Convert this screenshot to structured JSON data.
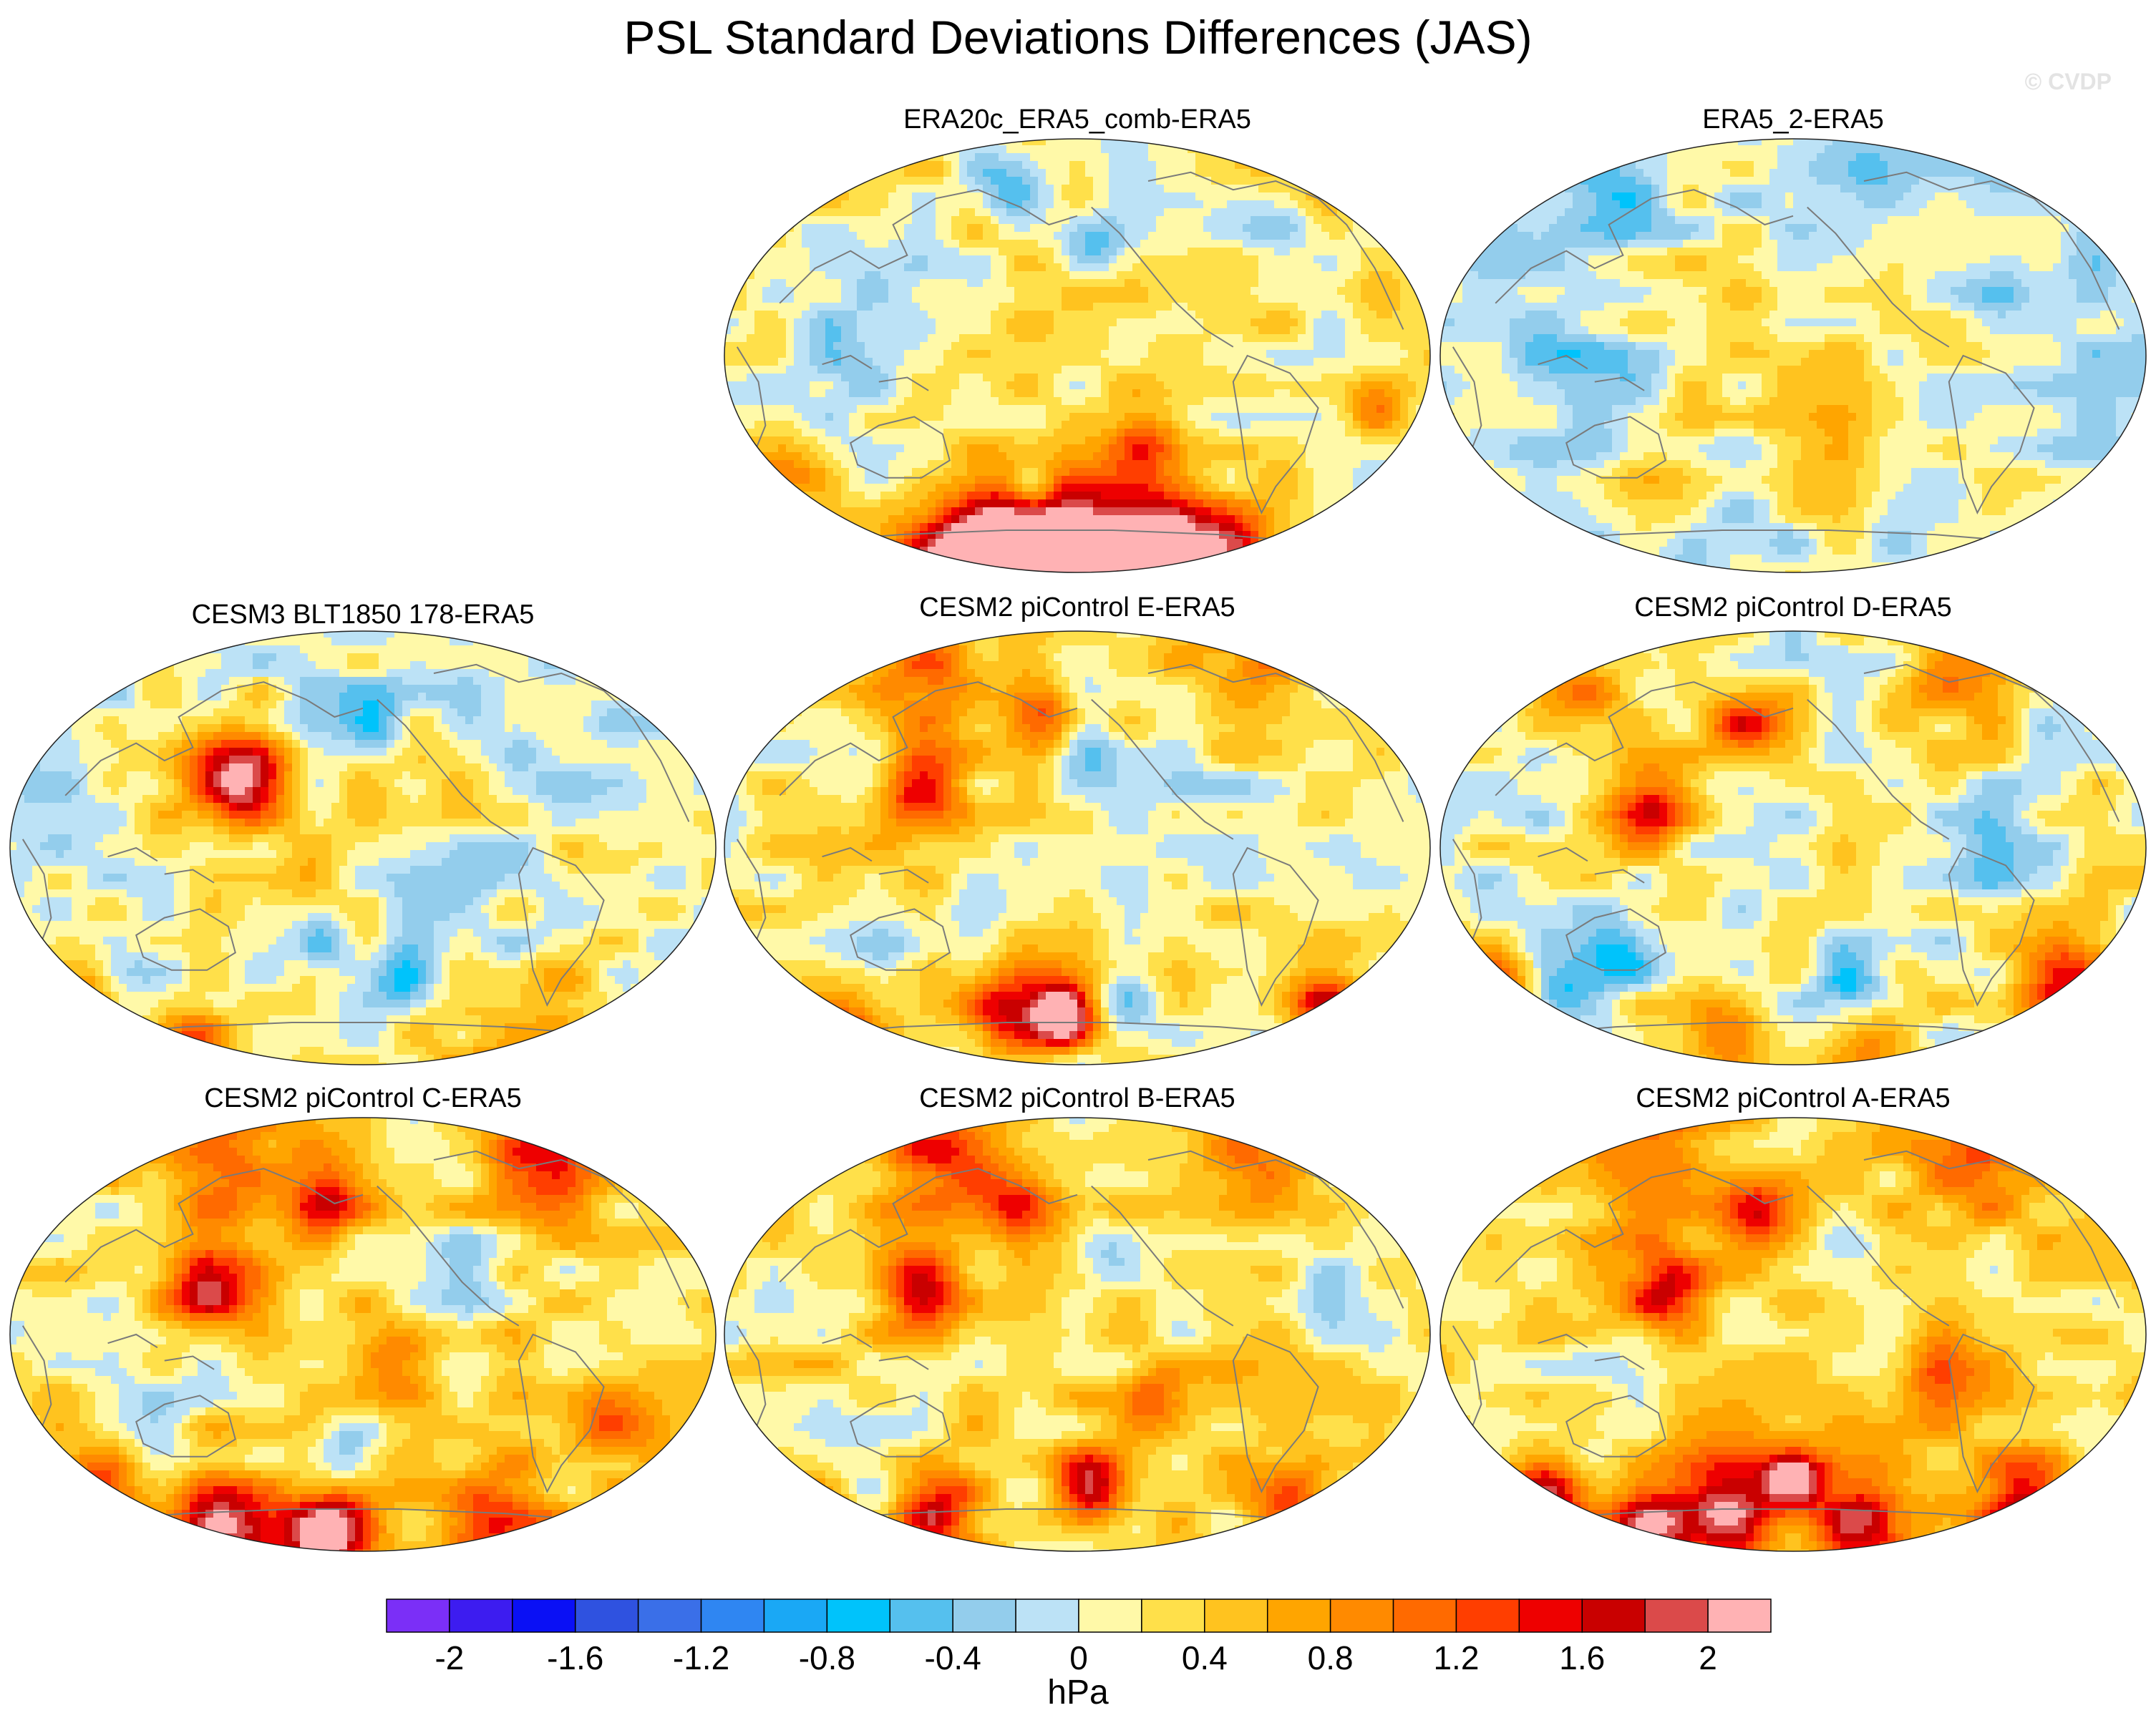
{
  "title": "PSL Standard Deviations Differences (JAS)",
  "watermark": "© CVDP",
  "panels": [
    {
      "label": "ERA20c_ERA5_comb-ERA5",
      "pattern": "reanalysis-a"
    },
    {
      "label": "ERA5_2-ERA5",
      "pattern": "reanalysis-b"
    },
    {
      "label": "CESM3 BLT1850 178-ERA5",
      "pattern": "model-a"
    },
    {
      "label": "CESM2 piControl E-ERA5",
      "pattern": "model-b"
    },
    {
      "label": "CESM2 piControl D-ERA5",
      "pattern": "model-c"
    },
    {
      "label": "CESM2 piControl C-ERA5",
      "pattern": "model-d"
    },
    {
      "label": "CESM2 piControl B-ERA5",
      "pattern": "model-e"
    },
    {
      "label": "CESM2 piControl A-ERA5",
      "pattern": "model-f"
    }
  ],
  "colorbar": {
    "unit": "hPa",
    "tick_labels": [
      "-2",
      "-1.6",
      "-1.2",
      "-0.8",
      "-0.4",
      "0",
      "0.4",
      "0.8",
      "1.2",
      "1.6",
      "2"
    ],
    "levels": [
      -2.2,
      -2.0,
      -1.8,
      -1.6,
      -1.4,
      -1.2,
      -1.0,
      -0.8,
      -0.6,
      -0.4,
      -0.2,
      0,
      0.2,
      0.4,
      0.6,
      0.8,
      1.0,
      1.2,
      1.4,
      1.6,
      1.8,
      2.0,
      2.2
    ],
    "colors": [
      "#7b2ff7",
      "#3d1cf0",
      "#0a10f5",
      "#2f52e0",
      "#3a6fe8",
      "#2f86f2",
      "#1aa8f5",
      "#00c3fb",
      "#55c0ee",
      "#93cdec",
      "#bce2f6",
      "#fff9a8",
      "#ffe04a",
      "#ffc31f",
      "#ffa500",
      "#ff8a00",
      "#ff6a00",
      "#ff3e00",
      "#ee0000",
      "#c90000",
      "#db4a4a",
      "#ffb2b4"
    ]
  }
}
